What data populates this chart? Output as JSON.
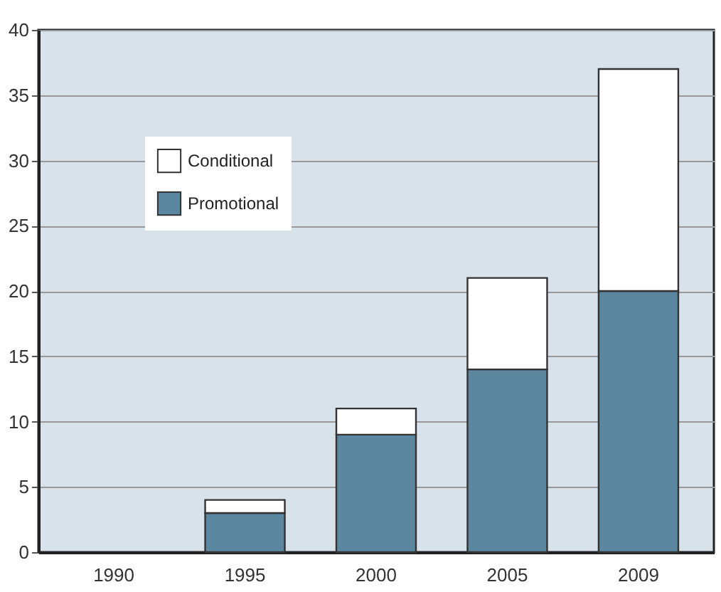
{
  "chart_data": {
    "type": "bar",
    "stacked": true,
    "categories": [
      "1990",
      "1995",
      "2000",
      "2005",
      "2009"
    ],
    "series": [
      {
        "name": "Promotional",
        "color": "#5b87a1",
        "values": [
          0,
          3,
          9,
          14,
          20
        ]
      },
      {
        "name": "Conditional",
        "color": "#ffffff",
        "values": [
          0,
          1,
          2,
          7,
          17
        ]
      }
    ],
    "ylim": [
      0,
      40
    ],
    "yticks": [
      0,
      5,
      10,
      15,
      20,
      25,
      30,
      35,
      40
    ],
    "grid": "y",
    "legend": "top left"
  }
}
